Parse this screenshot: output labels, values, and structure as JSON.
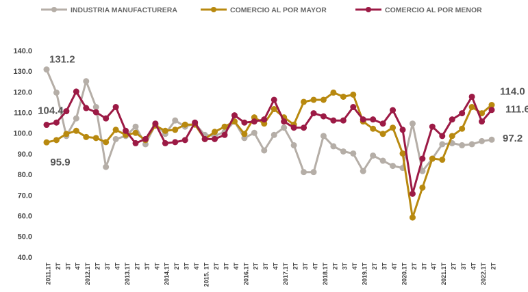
{
  "chart_data": {
    "type": "line",
    "categories": [
      "2011.1T",
      "2T",
      "3T",
      "4T",
      "2012.1T",
      "2T",
      "3T",
      "4T",
      "2013.1T",
      "2T",
      "3T",
      "4T",
      "2014.1T",
      "2T",
      "3T",
      "4T",
      "2015. 1T",
      "2T",
      "3T",
      "4T",
      "2016.1T",
      "2T",
      "3T",
      "4T",
      "2017.1T",
      "2T",
      "3T",
      "4T",
      "2018.1T",
      "2T",
      "3T",
      "4T",
      "2019.1T",
      "2T",
      "3T",
      "4T",
      "2020.1T",
      "2T",
      "3T",
      "4T",
      "2021.1T",
      "2T",
      "3T",
      "4T",
      "2022.1T",
      "2T"
    ],
    "series": [
      {
        "name": "INDUSTRIA MANUFACTURERA",
        "color": "#b5aea7",
        "values": [
          131.2,
          120,
          99,
          107.5,
          125.5,
          113,
          84,
          97.5,
          99,
          103.5,
          95,
          104.5,
          100,
          106.5,
          103.5,
          105,
          99.5,
          99,
          101,
          106,
          98,
          100.5,
          92,
          99.5,
          103,
          94.5,
          81.5,
          81.5,
          99,
          94,
          91.5,
          90.5,
          82,
          89.5,
          87,
          84.5,
          83.5,
          105,
          82,
          88,
          95,
          95.5,
          94.5,
          95,
          96.5,
          97.2
        ],
        "value_labels": [
          "131.2",
          null,
          null,
          null,
          null,
          null,
          null,
          null,
          null,
          null,
          null,
          null,
          null,
          null,
          null,
          null,
          null,
          null,
          null,
          null,
          null,
          null,
          null,
          null,
          null,
          null,
          null,
          null,
          null,
          null,
          null,
          null,
          null,
          null,
          null,
          null,
          null,
          null,
          null,
          null,
          null,
          null,
          null,
          null,
          null,
          "97.2"
        ]
      },
      {
        "name": "COMERCIO AL POR MAYOR",
        "color": "#b8890f",
        "values": [
          95.9,
          97,
          100,
          101.5,
          98.5,
          98,
          96,
          102,
          99.5,
          100.5,
          97,
          104,
          101.5,
          102,
          104.5,
          104.5,
          97.5,
          101,
          103.5,
          106,
          100,
          108,
          105,
          112,
          108,
          104.5,
          115.5,
          116.5,
          116.5,
          120,
          118,
          119,
          106,
          102.5,
          100,
          103,
          90.5,
          59.5,
          74,
          88,
          87.5,
          99,
          102.5,
          113,
          110,
          114.0
        ],
        "value_labels": [
          "95.9",
          null,
          null,
          null,
          null,
          null,
          null,
          null,
          null,
          null,
          null,
          null,
          null,
          null,
          null,
          null,
          null,
          null,
          null,
          null,
          null,
          null,
          null,
          null,
          null,
          null,
          null,
          null,
          null,
          null,
          null,
          null,
          null,
          null,
          null,
          null,
          null,
          null,
          null,
          null,
          null,
          null,
          null,
          null,
          null,
          "114.0"
        ]
      },
      {
        "name": "COMERCIO AL POR MENOR",
        "color": "#9c1a45",
        "values": [
          104.4,
          105.5,
          111,
          120.5,
          112.5,
          110.5,
          107.5,
          113,
          101.5,
          95.5,
          97.5,
          105,
          95.5,
          96,
          97,
          105.5,
          97.5,
          97.5,
          99.5,
          109,
          105.5,
          106,
          107,
          116.5,
          106,
          103,
          103,
          110,
          108.5,
          106.5,
          106.5,
          113,
          107,
          107,
          105,
          111.5,
          102,
          71,
          88,
          103.5,
          99,
          107,
          110,
          118,
          106,
          111.6
        ],
        "value_labels": [
          "104.4",
          null,
          null,
          null,
          null,
          null,
          null,
          null,
          null,
          null,
          null,
          null,
          null,
          null,
          null,
          null,
          null,
          null,
          null,
          null,
          null,
          null,
          null,
          null,
          null,
          null,
          null,
          null,
          null,
          null,
          null,
          null,
          null,
          null,
          null,
          null,
          null,
          null,
          null,
          null,
          null,
          null,
          null,
          null,
          null,
          "111.6"
        ]
      }
    ],
    "ylim": [
      40,
      140
    ],
    "yticks": [
      {
        "value": 40,
        "label": "40.0"
      },
      {
        "value": 50,
        "label": "50.0"
      },
      {
        "value": 60,
        "label": "60.0"
      },
      {
        "value": 70,
        "label": "70.0"
      },
      {
        "value": 80,
        "label": "80.0"
      },
      {
        "value": 90,
        "label": "90.0"
      },
      {
        "value": 100,
        "label": "100.0"
      },
      {
        "value": 110,
        "label": "110.0"
      },
      {
        "value": 120,
        "label": "120.0"
      },
      {
        "value": 130,
        "label": "130.0"
      },
      {
        "value": 140,
        "label": "140.0"
      }
    ],
    "grid": false,
    "legend": "top"
  }
}
